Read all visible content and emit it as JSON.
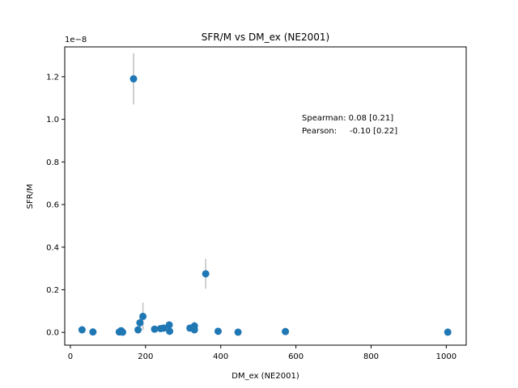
{
  "chart_data": {
    "type": "scatter",
    "title": "SFR/M vs DM_ex (NE2001)",
    "xlabel": "DM_ex (NE2001)",
    "ylabel": "SFR/M",
    "y_scale_label": "1e−8",
    "xlim": [
      -15,
      1053
    ],
    "ylim": [
      -0.06,
      1.34
    ],
    "x_ticks": [
      0,
      200,
      400,
      600,
      800,
      1000
    ],
    "x_tick_labels": [
      "0",
      "200",
      "400",
      "600",
      "800",
      "1000"
    ],
    "y_ticks": [
      0.0,
      0.2,
      0.4,
      0.6,
      0.8,
      1.0,
      1.2
    ],
    "y_tick_labels": [
      "0.0",
      "0.2",
      "0.4",
      "0.6",
      "0.8",
      "1.0",
      "1.2"
    ],
    "grid": false,
    "marker_color": "#1f77b4",
    "errorbar_color": "#c0c0c0",
    "annotations": [
      "Spearman: 0.08 [0.21]",
      "Pearson:     -0.10 [0.22]"
    ],
    "points": [
      {
        "x": 168,
        "y": 1.19,
        "yerr": 0.12
      },
      {
        "x": 360,
        "y": 0.275,
        "yerr": 0.07
      },
      {
        "x": 193,
        "y": 0.075,
        "yerr": 0.065
      },
      {
        "x": 185,
        "y": 0.045,
        "yerr": 0.03
      },
      {
        "x": 263,
        "y": 0.035,
        "yerr": 0.015
      },
      {
        "x": 330,
        "y": 0.03,
        "yerr": 0.02
      },
      {
        "x": 318,
        "y": 0.02,
        "yerr": 0.015
      },
      {
        "x": 248,
        "y": 0.02,
        "yerr": 0.01
      },
      {
        "x": 240,
        "y": 0.018,
        "yerr": 0.01
      },
      {
        "x": 224,
        "y": 0.015,
        "yerr": 0.01
      },
      {
        "x": 180,
        "y": 0.012,
        "yerr": 0.01
      },
      {
        "x": 330,
        "y": 0.012,
        "yerr": 0.01
      },
      {
        "x": 31,
        "y": 0.012,
        "yerr": 0.005
      },
      {
        "x": 135,
        "y": 0.008,
        "yerr": 0.005
      },
      {
        "x": 264,
        "y": 0.005,
        "yerr": 0.004
      },
      {
        "x": 393,
        "y": 0.005,
        "yerr": 0.004
      },
      {
        "x": 572,
        "y": 0.004,
        "yerr": 0.003
      },
      {
        "x": 60,
        "y": 0.002,
        "yerr": 0.002
      },
      {
        "x": 130,
        "y": 0.002,
        "yerr": 0.002
      },
      {
        "x": 139,
        "y": 0.001,
        "yerr": 0.002
      },
      {
        "x": 446,
        "y": 0.001,
        "yerr": 0.002
      },
      {
        "x": 1004,
        "y": 0.001,
        "yerr": 0.002
      }
    ]
  }
}
